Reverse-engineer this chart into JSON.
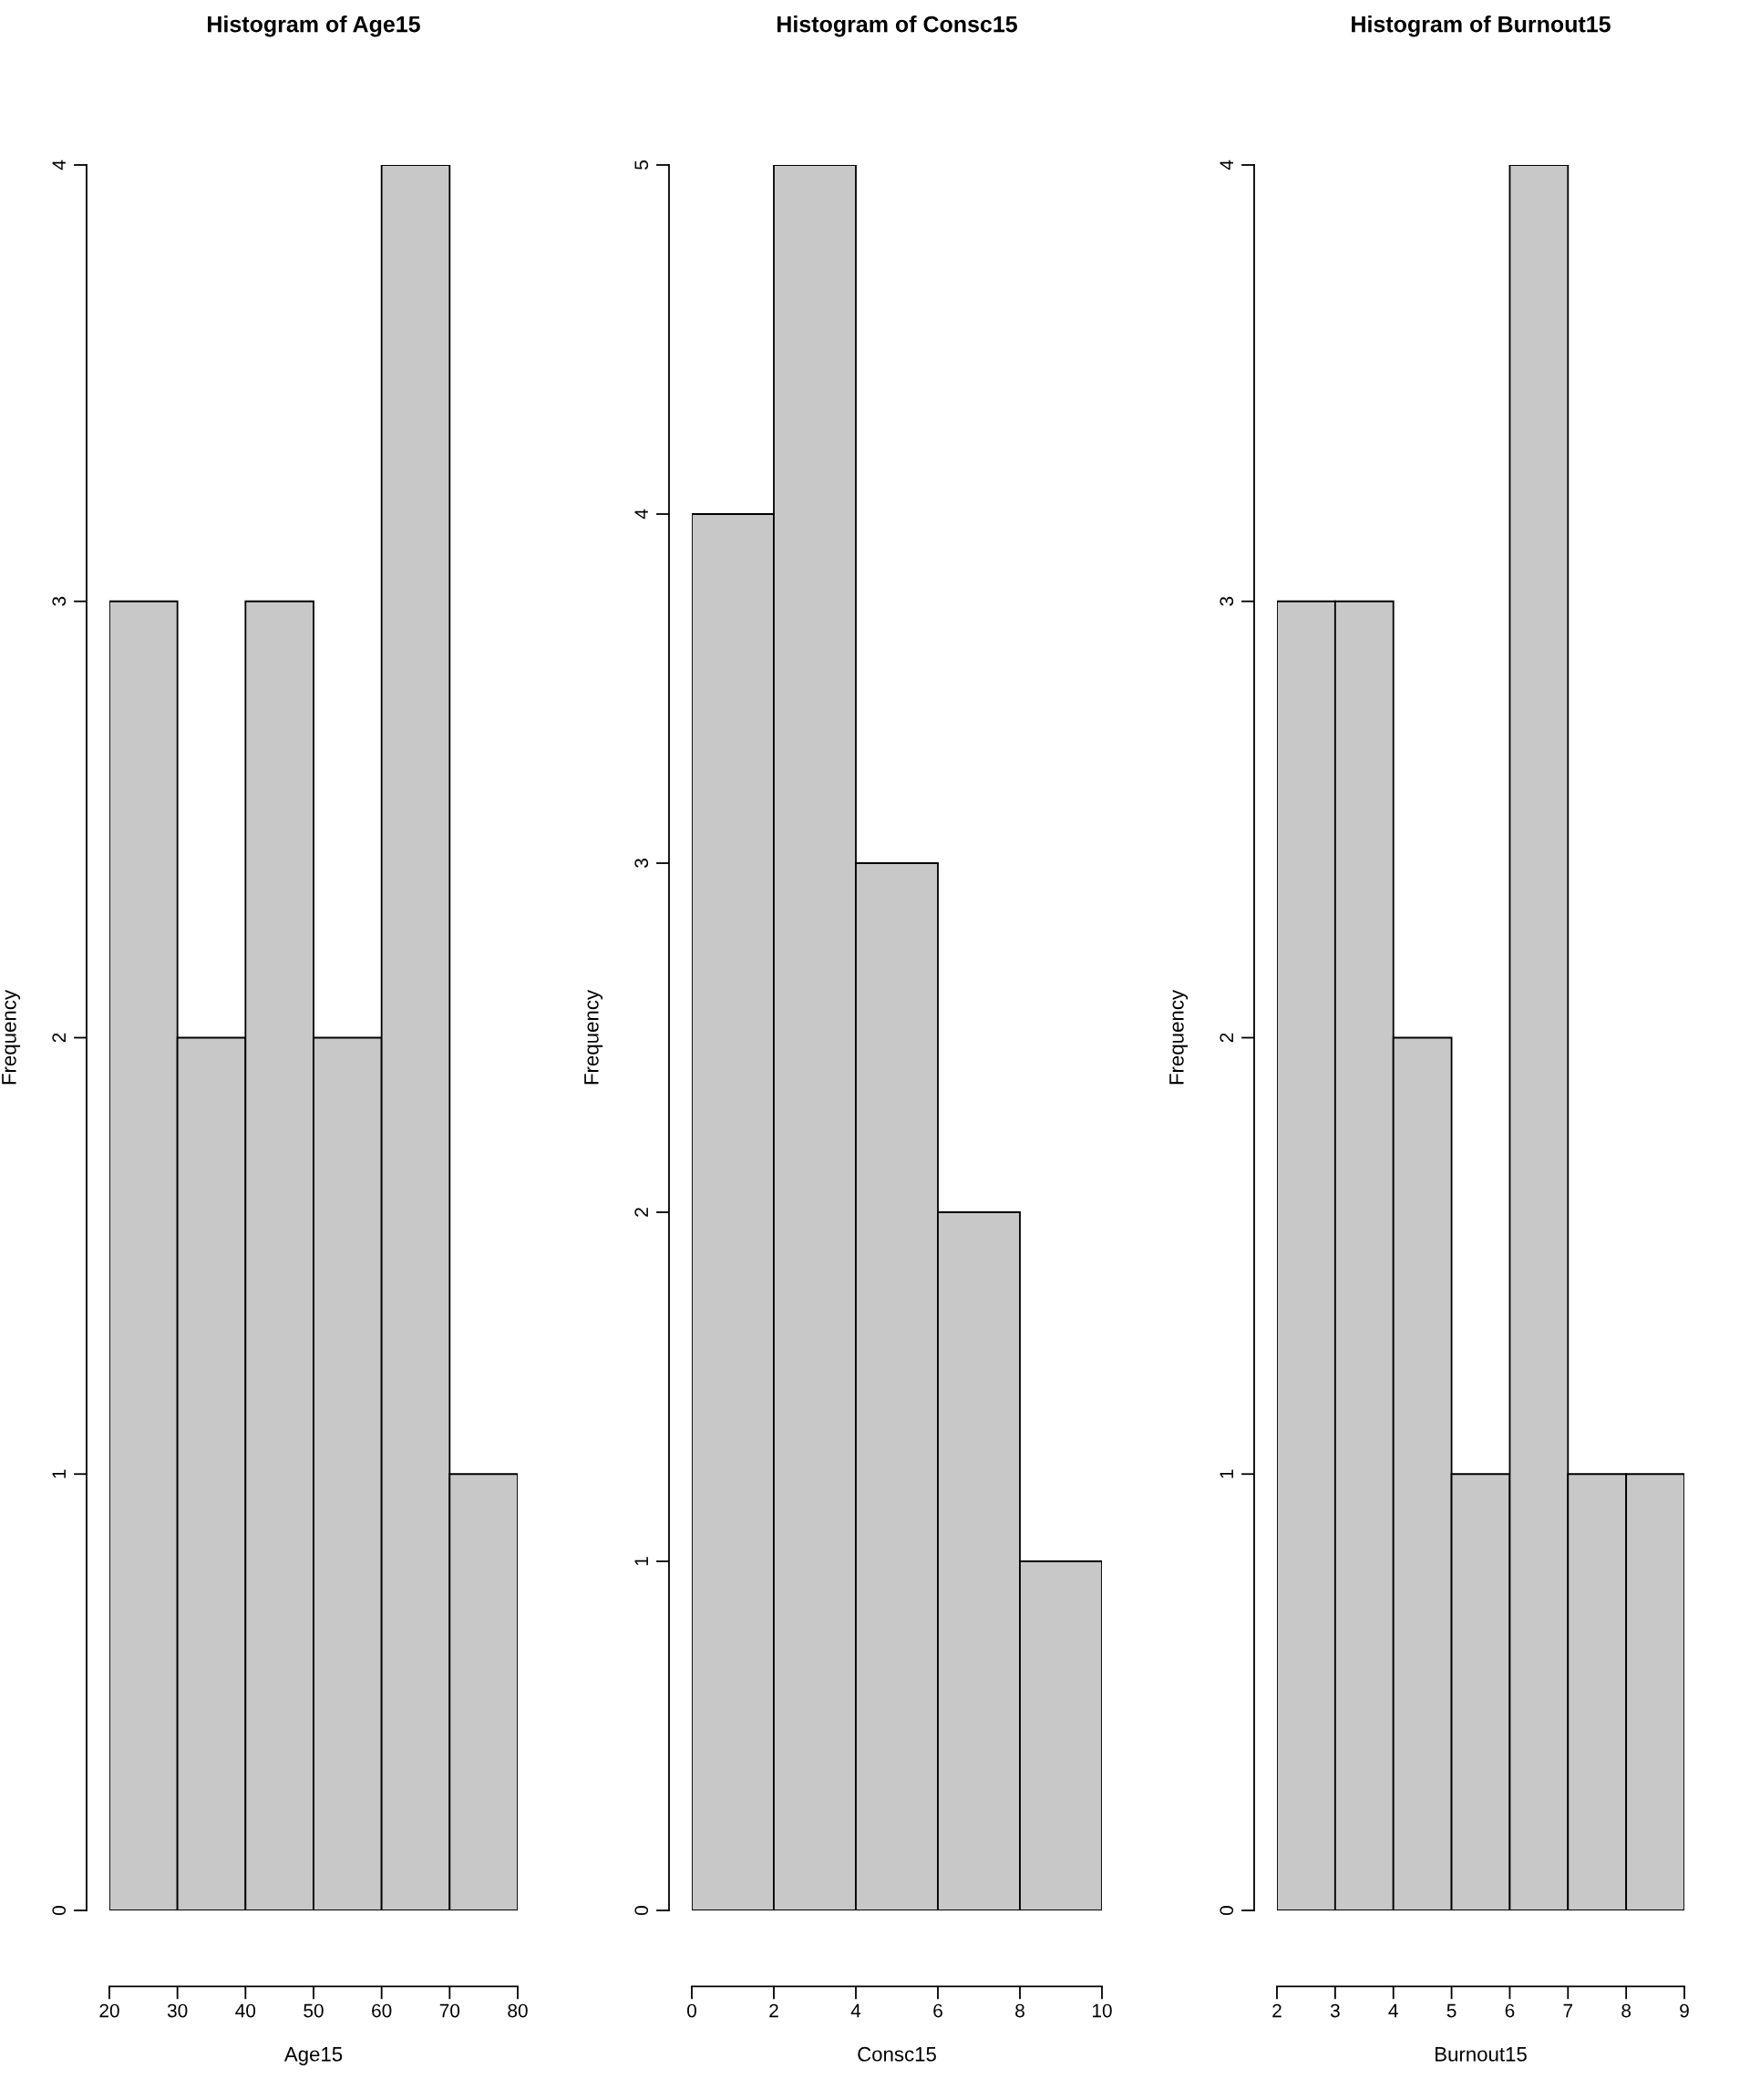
{
  "chart_data": [
    {
      "type": "histogram",
      "title": "Histogram of Age15",
      "xlabel": "Age15",
      "ylabel": "Frequency",
      "bins": [
        20,
        30,
        40,
        50,
        60,
        70,
        80
      ],
      "values": [
        3,
        2,
        3,
        2,
        4,
        1
      ],
      "color": "#c8c8c8",
      "xlim": [
        20,
        80
      ],
      "ylim": [
        0,
        4
      ],
      "xticks": [
        20,
        30,
        40,
        50,
        60,
        70,
        80
      ],
      "yticks": [
        0,
        1,
        2,
        3,
        4
      ],
      "grid": false
    },
    {
      "type": "histogram",
      "title": "Histogram of Consc15",
      "xlabel": "Consc15",
      "ylabel": "Frequency",
      "bins": [
        0,
        2,
        4,
        6,
        8,
        10
      ],
      "values": [
        4,
        5,
        3,
        2,
        1
      ],
      "color": "#c8c8c8",
      "xlim": [
        0,
        10
      ],
      "ylim": [
        0,
        5
      ],
      "xticks": [
        0,
        2,
        4,
        6,
        8,
        10
      ],
      "yticks": [
        0,
        1,
        2,
        3,
        4,
        5
      ],
      "grid": false
    },
    {
      "type": "histogram",
      "title": "Histogram of Burnout15",
      "xlabel": "Burnout15",
      "ylabel": "Frequency",
      "bins": [
        2,
        3,
        4,
        5,
        6,
        7,
        8,
        9
      ],
      "values": [
        3,
        3,
        2,
        1,
        4,
        1,
        1
      ],
      "color": "#c8c8c8",
      "xlim": [
        2,
        9
      ],
      "ylim": [
        0,
        4
      ],
      "xticks": [
        2,
        3,
        4,
        5,
        6,
        7,
        8,
        9
      ],
      "yticks": [
        0,
        1,
        2,
        3,
        4
      ],
      "grid": false
    }
  ]
}
